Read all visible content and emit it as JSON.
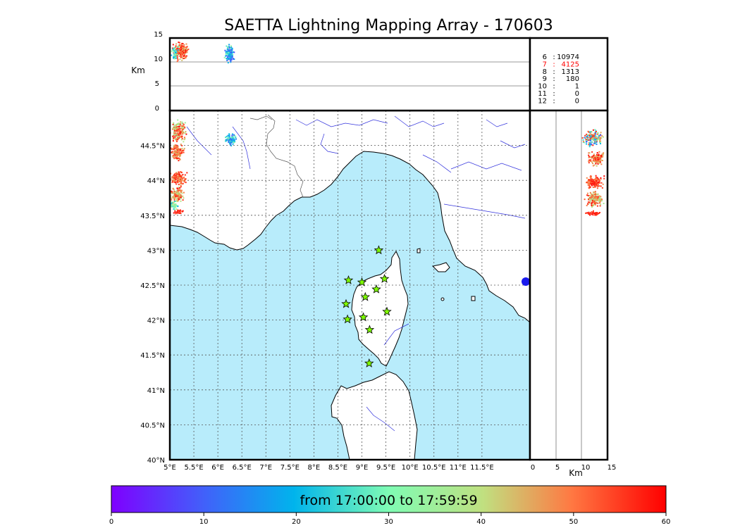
{
  "title": "SAETTA Lightning Mapping Array - 170603",
  "altitude_panel": {
    "ylabel": "Km",
    "yticks": [
      "15",
      "10",
      "5",
      "0"
    ]
  },
  "side_panel": {
    "xlabel": "Km",
    "xticks": [
      "0",
      "5",
      "10",
      "15"
    ]
  },
  "map": {
    "extent": {
      "lon": [
        5.0,
        12.5
      ],
      "lat": [
        40.0,
        45.0
      ]
    },
    "lon_ticks": [
      "5°E",
      "5.5°E",
      "6°E",
      "6.5°E",
      "7°E",
      "7.5°E",
      "8°E",
      "8.5°E",
      "9°E",
      "9.5°E",
      "10°E",
      "10.5°E",
      "11°E",
      "11.5°E"
    ],
    "lat_ticks": [
      "40°N",
      "40.5°N",
      "41°N",
      "41.5°N",
      "42°N",
      "42.5°N",
      "43°N",
      "43.5°N",
      "44°N",
      "44.5°N"
    ],
    "sea_color": "#b8ecfb",
    "land_color": "#ffffff",
    "river_color": "#3333dd",
    "stations": [
      {
        "lon": 9.35,
        "lat": 43.0
      },
      {
        "lon": 8.72,
        "lat": 42.57
      },
      {
        "lon": 9.0,
        "lat": 42.54
      },
      {
        "lon": 9.47,
        "lat": 42.59
      },
      {
        "lon": 9.3,
        "lat": 42.44
      },
      {
        "lon": 9.07,
        "lat": 42.33
      },
      {
        "lon": 8.67,
        "lat": 42.23
      },
      {
        "lon": 9.52,
        "lat": 42.12
      },
      {
        "lon": 8.7,
        "lat": 42.01
      },
      {
        "lon": 9.03,
        "lat": 42.04
      },
      {
        "lon": 9.16,
        "lat": 41.86
      },
      {
        "lon": 9.15,
        "lat": 41.38
      }
    ],
    "station_color": "#7fff00"
  },
  "counts_table": [
    {
      "n": "6",
      "count": "10974",
      "color": "#000000"
    },
    {
      "n": "7",
      "count": "4125",
      "color": "#ff0000"
    },
    {
      "n": "8",
      "count": "1313",
      "color": "#000000"
    },
    {
      "n": "9",
      "count": "180",
      "color": "#000000"
    },
    {
      "n": "10",
      "count": "1",
      "color": "#000000"
    },
    {
      "n": "11",
      "count": "0",
      "color": "#000000"
    },
    {
      "n": "12",
      "count": "0",
      "color": "#000000"
    }
  ],
  "colorbar": {
    "label": "from 17:00:00 to 17:59:59",
    "ticks": [
      "0",
      "10",
      "20",
      "30",
      "40",
      "50",
      "60"
    ],
    "min": 0,
    "max": 60
  }
}
